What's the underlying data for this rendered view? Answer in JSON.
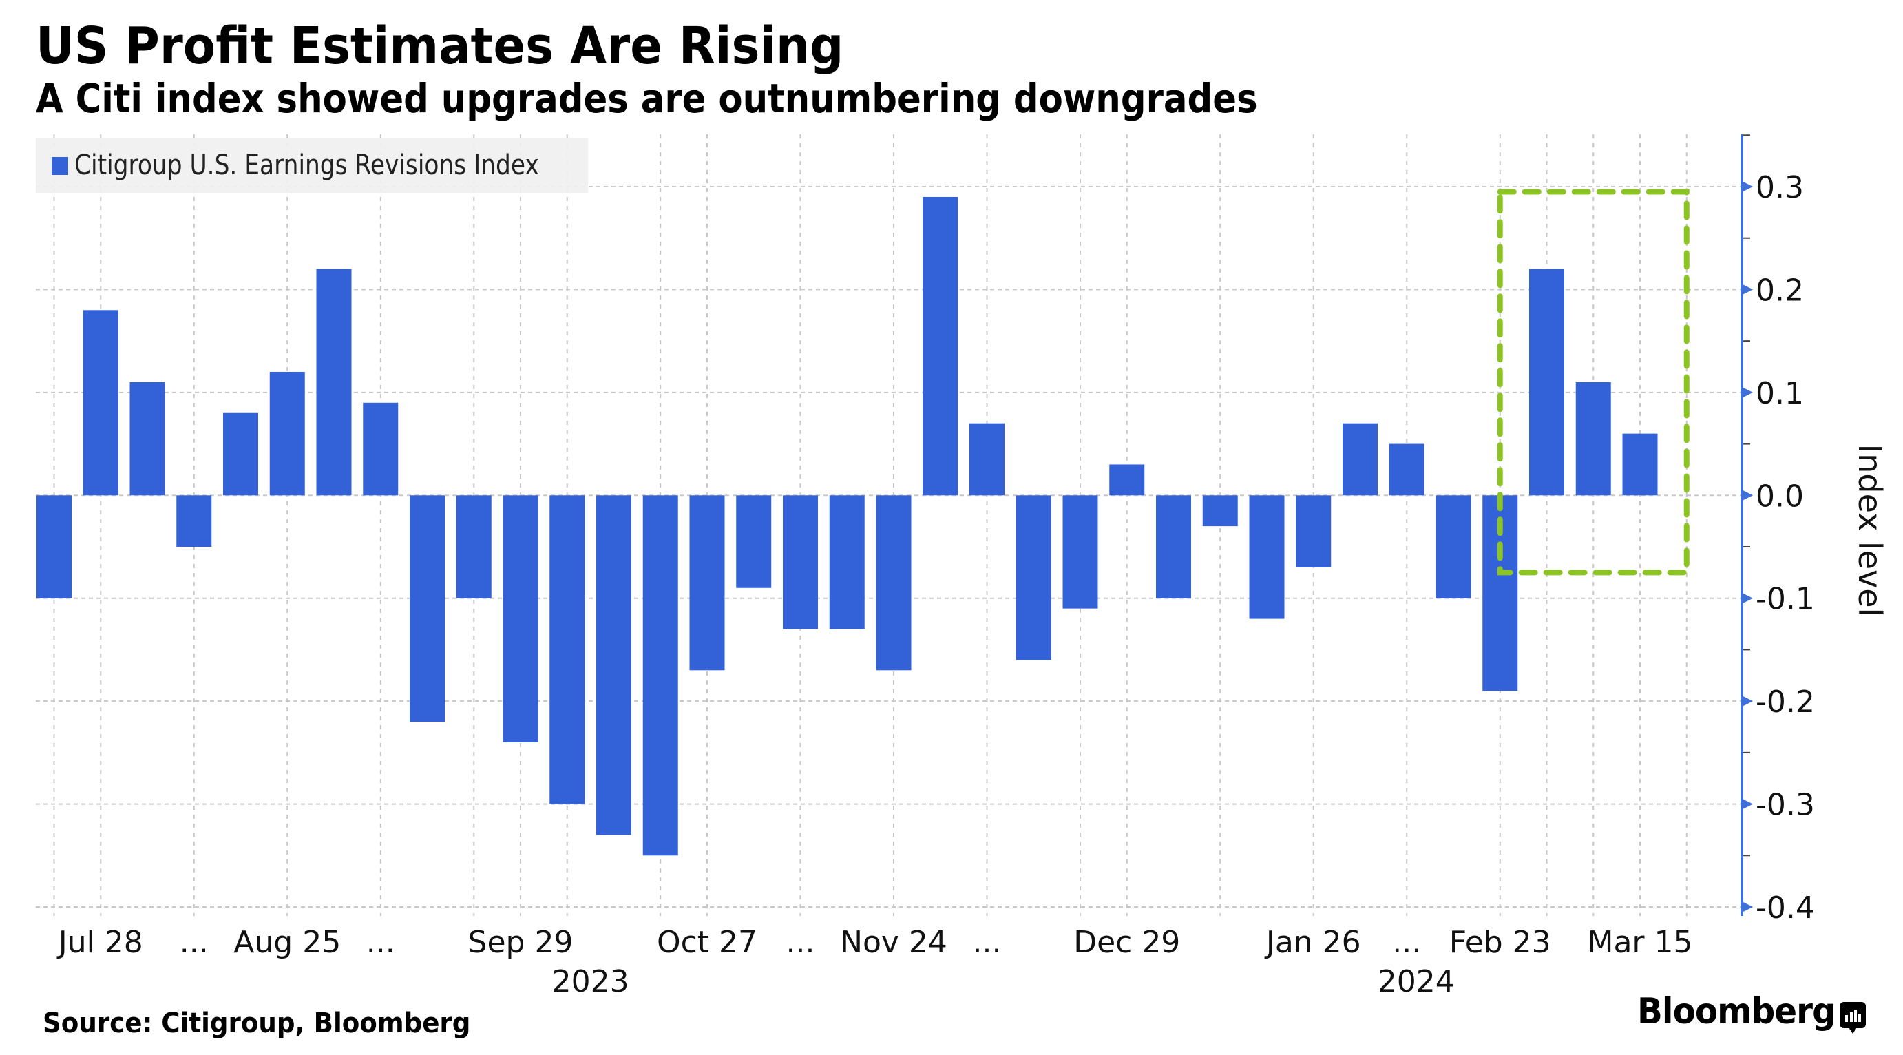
{
  "header": {
    "title": "US Profit Estimates Are Rising",
    "subtitle": "A Citi index showed upgrades are outnumbering downgrades"
  },
  "footer": {
    "source": "Source: Citigroup, Bloomberg",
    "brand": "Bloomberg"
  },
  "colors": {
    "bar": "#3362d8",
    "axis": "#3f6fd9",
    "highlight_box": "#8cc424",
    "grid": "#c8c8c8",
    "legend_bg": "#f0f0f0"
  },
  "chart_data": {
    "type": "bar",
    "title": "US Profit Estimates Are Rising",
    "subtitle": "A Citi index showed upgrades are outnumbering downgrades",
    "legend": [
      "Citigroup U.S. Earnings Revisions Index"
    ],
    "legend_position": "top-left",
    "xlabel": "",
    "ylabel": "Index level",
    "y_axis_side": "right",
    "ylim": [
      -0.4,
      0.3
    ],
    "yticks": [
      0.3,
      0.2,
      0.1,
      0.0,
      -0.1,
      -0.2,
      -0.3,
      -0.4
    ],
    "ytick_labels": [
      "0.3",
      "0.2",
      "0.1",
      "0.0",
      "-0.1",
      "-0.2",
      "-0.3",
      "-0.4"
    ],
    "grid": true,
    "series": [
      {
        "name": "Citigroup U.S. Earnings Revisions Index",
        "values": [
          -0.1,
          0.18,
          0.11,
          -0.05,
          0.08,
          0.12,
          0.22,
          0.09,
          -0.22,
          -0.1,
          -0.24,
          -0.3,
          -0.33,
          -0.35,
          -0.17,
          -0.09,
          -0.13,
          -0.13,
          -0.17,
          0.29,
          0.07,
          -0.16,
          -0.11,
          0.03,
          -0.1,
          -0.03,
          -0.12,
          -0.07,
          0.07,
          0.05,
          -0.1,
          -0.19,
          0.22,
          0.11,
          0.06
        ]
      }
    ],
    "n_slots": 36,
    "xtick_labels": [
      {
        "slot": 2,
        "label": "Jul 28"
      },
      {
        "slot": 4,
        "label": "..."
      },
      {
        "slot": 6,
        "label": "Aug 25"
      },
      {
        "slot": 8,
        "label": "..."
      },
      {
        "slot": 11,
        "label": "Sep 29"
      },
      {
        "slot": 15,
        "label": "Oct 27"
      },
      {
        "slot": 17,
        "label": "..."
      },
      {
        "slot": 19,
        "label": "Nov 24"
      },
      {
        "slot": 21,
        "label": "..."
      },
      {
        "slot": 24,
        "label": "Dec 29"
      },
      {
        "slot": 28,
        "label": "Jan 26"
      },
      {
        "slot": 30,
        "label": "..."
      },
      {
        "slot": 32,
        "label": "Feb 23"
      },
      {
        "slot": 35,
        "label": "Mar 15"
      }
    ],
    "year_labels": [
      {
        "slot": 12.5,
        "label": "2023"
      },
      {
        "slot": 30.2,
        "label": "2024"
      }
    ],
    "vertical_grid_slots": [
      1,
      2,
      4,
      6,
      8,
      10,
      11,
      12,
      14,
      15,
      17,
      19,
      21,
      23,
      24,
      26,
      28,
      30,
      32,
      33,
      34,
      35,
      36
    ],
    "annotations": [
      {
        "type": "dashed-rectangle",
        "from_slot": 32,
        "to_slot": 36,
        "y_top": 0.295,
        "y_bottom": -0.075
      }
    ]
  }
}
